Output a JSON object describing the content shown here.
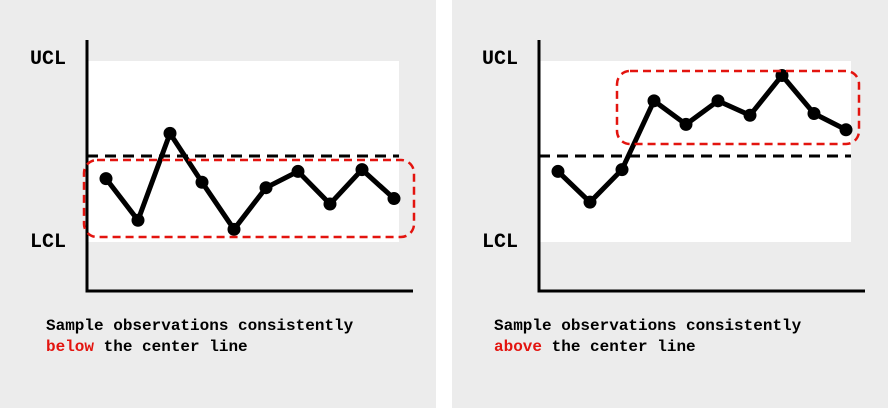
{
  "colors": {
    "panel_background": "#ececec",
    "plot_background": "#ffffff",
    "line": "#000000",
    "highlight_box": "#e3140f",
    "highlight_text": "#e3140f"
  },
  "panels": [
    {
      "limit_labels": {
        "upper": "UCL",
        "lower": "LCL"
      },
      "caption": {
        "line1": "Sample observations consistently",
        "highlight": "below",
        "rest": " the center line"
      }
    },
    {
      "limit_labels": {
        "upper": "UCL",
        "lower": "LCL"
      },
      "caption": {
        "line1": "Sample observations consistently",
        "highlight": "above",
        "rest": " the center line"
      }
    }
  ],
  "chart_data": [
    {
      "type": "line",
      "y_levels": {
        "ucl": "UCL",
        "lcl": "LCL",
        "center_line": "dashed"
      },
      "values": [
        0.35,
        0.12,
        0.6,
        0.33,
        0.07,
        0.3,
        0.39,
        0.21,
        0.4,
        0.24
      ],
      "highlight": "points below center line"
    },
    {
      "type": "line",
      "y_levels": {
        "ucl": "UCL",
        "lcl": "LCL",
        "center_line": "dashed"
      },
      "values": [
        0.39,
        0.22,
        0.4,
        0.78,
        0.65,
        0.78,
        0.7,
        0.92,
        0.71,
        0.62
      ],
      "highlight": "points above center line"
    }
  ]
}
